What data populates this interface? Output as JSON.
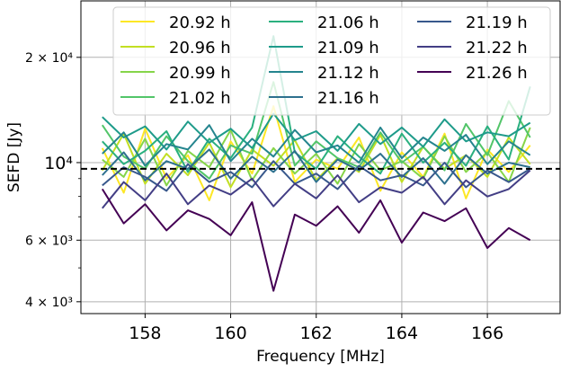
{
  "chart_data": {
    "type": "line",
    "title": "",
    "xlabel": "Frequency [MHz]",
    "ylabel": "SEFD [Jy]",
    "xlim": [
      156.5,
      167.7
    ],
    "ylim": [
      3700,
      29000
    ],
    "yscale": "log",
    "grid": true,
    "legend": {
      "placement": "top-center",
      "columns": 3
    },
    "x_ticks": [
      {
        "value": 158,
        "label": "158"
      },
      {
        "value": 160,
        "label": "160"
      },
      {
        "value": 162,
        "label": "162"
      },
      {
        "value": 164,
        "label": "164"
      },
      {
        "value": 166,
        "label": "166"
      }
    ],
    "y_ticks": [
      {
        "value": 4000,
        "label": "4 × 10³"
      },
      {
        "value": 6000,
        "label": "6 × 10³"
      },
      {
        "value": 10000,
        "label": "10⁴"
      },
      {
        "value": 20000,
        "label": "2 × 10⁴"
      }
    ],
    "reference_line": {
      "y": 9600,
      "style": "dashed",
      "color": "#000000"
    },
    "x": [
      157.0,
      157.5,
      158.0,
      158.5,
      159.0,
      159.5,
      160.0,
      160.5,
      161.0,
      161.5,
      162.0,
      162.5,
      163.0,
      163.5,
      164.0,
      164.5,
      165.0,
      165.5,
      166.0,
      166.5,
      167.0
    ],
    "series": [
      {
        "name": "20.92 h",
        "color": "#fde725",
        "values": [
          11000,
          8200,
          12500,
          9000,
          10500,
          7800,
          11500,
          9300,
          14500,
          8800,
          10200,
          9600,
          11800,
          8300,
          10700,
          9100,
          12100,
          7900,
          10900,
          9400,
          11200
        ]
      },
      {
        "name": "20.96 h",
        "color": "#c2df23",
        "values": [
          9500,
          12100,
          8700,
          10600,
          9200,
          11400,
          8500,
          10900,
          9800,
          11600,
          8900,
          10300,
          9400,
          12000,
          8800,
          11100,
          9600,
          10500,
          9100,
          11800,
          9900
        ]
      },
      {
        "name": "20.99 h",
        "color": "#86d549",
        "values": [
          10200,
          9100,
          11700,
          8600,
          10800,
          9700,
          12400,
          8900,
          11000,
          9300,
          10600,
          8700,
          11300,
          9500,
          10100,
          9000,
          11900,
          9400,
          10700,
          8800,
          12600
        ]
      },
      {
        "name": "21.02 h",
        "color": "#52c569",
        "values": [
          12800,
          10400,
          9600,
          11900,
          10100,
          9000,
          11200,
          10600,
          17000,
          9800,
          11500,
          10300,
          9700,
          12200,
          10000,
          11100,
          9500,
          12900,
          10500,
          15000,
          11800
        ]
      },
      {
        "name": "21.06 h",
        "color": "#2ab07f",
        "values": [
          11500,
          9900,
          10800,
          12300,
          9400,
          11700,
          10300,
          12600,
          23000,
          10700,
          9600,
          11900,
          10400,
          9300,
          12100,
          10000,
          11400,
          9800,
          12700,
          10200,
          16500
        ]
      },
      {
        "name": "21.09 h",
        "color": "#1e9b8a",
        "values": [
          13500,
          11800,
          12700,
          10900,
          13100,
          11400,
          12500,
          11000,
          13800,
          11600,
          12300,
          10800,
          12900,
          11300,
          12600,
          11100,
          13300,
          11500,
          12200,
          11900,
          13000
        ]
      },
      {
        "name": "21.12 h",
        "color": "#25858e",
        "values": [
          10600,
          12200,
          9800,
          11300,
          10900,
          12800,
          10100,
          11700,
          10400,
          12400,
          10700,
          11200,
          10000,
          12600,
          10300,
          11800,
          10800,
          12000,
          9900,
          11500,
          10500
        ]
      },
      {
        "name": "21.16 h",
        "color": "#2d708e",
        "values": [
          9200,
          10700,
          8900,
          10100,
          9600,
          10900,
          9000,
          10400,
          9400,
          10800,
          8800,
          10200,
          9500,
          10600,
          9100,
          10300,
          8700,
          10500,
          9300,
          10000,
          9700
        ]
      },
      {
        "name": "21.19 h",
        "color": "#38588c",
        "values": [
          8600,
          9700,
          9100,
          8300,
          9900,
          8800,
          9400,
          8500,
          10100,
          8700,
          9300,
          8400,
          9800,
          8900,
          9200,
          8600,
          10000,
          8500,
          9500,
          8800,
          9600
        ]
      },
      {
        "name": "21.22 h",
        "color": "#433e85",
        "values": [
          7400,
          8800,
          7800,
          9300,
          7600,
          8600,
          8100,
          9000,
          7500,
          8700,
          7900,
          9200,
          7700,
          8500,
          8200,
          9100,
          7600,
          8900,
          8000,
          8400,
          9500
        ]
      },
      {
        "name": "21.26 h",
        "color": "#440154",
        "values": [
          8400,
          6700,
          7600,
          6400,
          7300,
          6900,
          6200,
          7700,
          4300,
          7100,
          6600,
          7500,
          6300,
          7800,
          5900,
          7200,
          6800,
          7400,
          5700,
          6500,
          6000
        ]
      }
    ]
  }
}
